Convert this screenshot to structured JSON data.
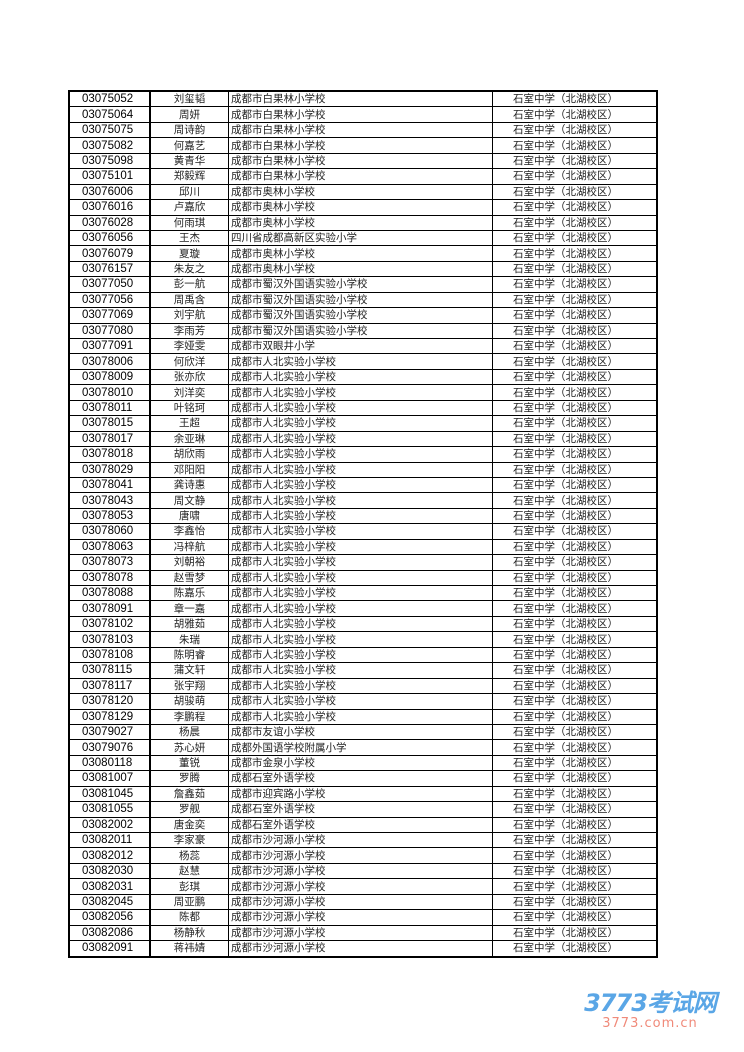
{
  "rows": [
    [
      "03075052",
      "刘玺韬",
      "成都市白果林小学校",
      "石室中学（北湖校区）"
    ],
    [
      "03075064",
      "周妍",
      "成都市白果林小学校",
      "石室中学（北湖校区）"
    ],
    [
      "03075075",
      "周诗韵",
      "成都市白果林小学校",
      "石室中学（北湖校区）"
    ],
    [
      "03075082",
      "何嘉艺",
      "成都市白果林小学校",
      "石室中学（北湖校区）"
    ],
    [
      "03075098",
      "黄青华",
      "成都市白果林小学校",
      "石室中学（北湖校区）"
    ],
    [
      "03075101",
      "郑毅辉",
      "成都市白果林小学校",
      "石室中学（北湖校区）"
    ],
    [
      "03076006",
      "邱川",
      "成都市奥林小学校",
      "石室中学（北湖校区）"
    ],
    [
      "03076016",
      "卢嘉欣",
      "成都市奥林小学校",
      "石室中学（北湖校区）"
    ],
    [
      "03076028",
      "何雨琪",
      "成都市奥林小学校",
      "石室中学（北湖校区）"
    ],
    [
      "03076056",
      "王杰",
      "四川省成都高新区实验小学",
      "石室中学（北湖校区）"
    ],
    [
      "03076079",
      "夏璇",
      "成都市奥林小学校",
      "石室中学（北湖校区）"
    ],
    [
      "03076157",
      "朱友之",
      "成都市奥林小学校",
      "石室中学（北湖校区）"
    ],
    [
      "03077050",
      "彭一航",
      "成都市蜀汉外国语实验小学校",
      "石室中学（北湖校区）"
    ],
    [
      "03077056",
      "周禹含",
      "成都市蜀汉外国语实验小学校",
      "石室中学（北湖校区）"
    ],
    [
      "03077069",
      "刘宇航",
      "成都市蜀汉外国语实验小学校",
      "石室中学（北湖校区）"
    ],
    [
      "03077080",
      "李雨芳",
      "成都市蜀汉外国语实验小学校",
      "石室中学（北湖校区）"
    ],
    [
      "03077091",
      "李娅雯",
      "成都市双眼井小学",
      "石室中学（北湖校区）"
    ],
    [
      "03078006",
      "何欣洋",
      "成都市人北实验小学校",
      "石室中学（北湖校区）"
    ],
    [
      "03078009",
      "张亦欣",
      "成都市人北实验小学校",
      "石室中学（北湖校区）"
    ],
    [
      "03078010",
      "刘洋奕",
      "成都市人北实验小学校",
      "石室中学（北湖校区）"
    ],
    [
      "03078011",
      "叶铭珂",
      "成都市人北实验小学校",
      "石室中学（北湖校区）"
    ],
    [
      "03078015",
      "王超",
      "成都市人北实验小学校",
      "石室中学（北湖校区）"
    ],
    [
      "03078017",
      "余亚琳",
      "成都市人北实验小学校",
      "石室中学（北湖校区）"
    ],
    [
      "03078018",
      "胡欣雨",
      "成都市人北实验小学校",
      "石室中学（北湖校区）"
    ],
    [
      "03078029",
      "邓阳阳",
      "成都市人北实验小学校",
      "石室中学（北湖校区）"
    ],
    [
      "03078041",
      "龚诗惠",
      "成都市人北实验小学校",
      "石室中学（北湖校区）"
    ],
    [
      "03078043",
      "周文静",
      "成都市人北实验小学校",
      "石室中学（北湖校区）"
    ],
    [
      "03078053",
      "唐啸",
      "成都市人北实验小学校",
      "石室中学（北湖校区）"
    ],
    [
      "03078060",
      "李鑫怡",
      "成都市人北实验小学校",
      "石室中学（北湖校区）"
    ],
    [
      "03078063",
      "冯梓航",
      "成都市人北实验小学校",
      "石室中学（北湖校区）"
    ],
    [
      "03078073",
      "刘朝裕",
      "成都市人北实验小学校",
      "石室中学（北湖校区）"
    ],
    [
      "03078078",
      "赵雪梦",
      "成都市人北实验小学校",
      "石室中学（北湖校区）"
    ],
    [
      "03078088",
      "陈嘉乐",
      "成都市人北实验小学校",
      "石室中学（北湖校区）"
    ],
    [
      "03078091",
      "章一嘉",
      "成都市人北实验小学校",
      "石室中学（北湖校区）"
    ],
    [
      "03078102",
      "胡雅茹",
      "成都市人北实验小学校",
      "石室中学（北湖校区）"
    ],
    [
      "03078103",
      "朱瑞",
      "成都市人北实验小学校",
      "石室中学（北湖校区）"
    ],
    [
      "03078108",
      "陈明睿",
      "成都市人北实验小学校",
      "石室中学（北湖校区）"
    ],
    [
      "03078115",
      "蒲文轩",
      "成都市人北实验小学校",
      "石室中学（北湖校区）"
    ],
    [
      "03078117",
      "张宇翔",
      "成都市人北实验小学校",
      "石室中学（北湖校区）"
    ],
    [
      "03078120",
      "胡骏萌",
      "成都市人北实验小学校",
      "石室中学（北湖校区）"
    ],
    [
      "03078129",
      "李鹏程",
      "成都市人北实验小学校",
      "石室中学（北湖校区）"
    ],
    [
      "03079027",
      "杨晨",
      "成都市友谊小学校",
      "石室中学（北湖校区）"
    ],
    [
      "03079076",
      "苏心妍",
      "成都外国语学校附属小学",
      "石室中学（北湖校区）"
    ],
    [
      "03080118",
      "董锐",
      "成都市金泉小学校",
      "石室中学（北湖校区）"
    ],
    [
      "03081007",
      "罗腾",
      "成都石室外语学校",
      "石室中学（北湖校区）"
    ],
    [
      "03081045",
      "詹鑫茹",
      "成都市迎宾路小学校",
      "石室中学（北湖校区）"
    ],
    [
      "03081055",
      "罗舰",
      "成都石室外语学校",
      "石室中学（北湖校区）"
    ],
    [
      "03082002",
      "唐金奕",
      "成都石室外语学校",
      "石室中学（北湖校区）"
    ],
    [
      "03082011",
      "李家豪",
      "成都市沙河源小学校",
      "石室中学（北湖校区）"
    ],
    [
      "03082012",
      "杨蕊",
      "成都市沙河源小学校",
      "石室中学（北湖校区）"
    ],
    [
      "03082030",
      "赵慧",
      "成都市沙河源小学校",
      "石室中学（北湖校区）"
    ],
    [
      "03082031",
      "彭琪",
      "成都市沙河源小学校",
      "石室中学（北湖校区）"
    ],
    [
      "03082045",
      "周亚鹏",
      "成都市沙河源小学校",
      "石室中学（北湖校区）"
    ],
    [
      "03082056",
      "陈都",
      "成都市沙河源小学校",
      "石室中学（北湖校区）"
    ],
    [
      "03082086",
      "杨静秋",
      "成都市沙河源小学校",
      "石室中学（北湖校区）"
    ],
    [
      "03082091",
      "蒋祎婧",
      "成都市沙河源小学校",
      "石室中学（北湖校区）"
    ]
  ],
  "watermark": {
    "logo": "3773考试网",
    "url": "3773.com.cn"
  }
}
